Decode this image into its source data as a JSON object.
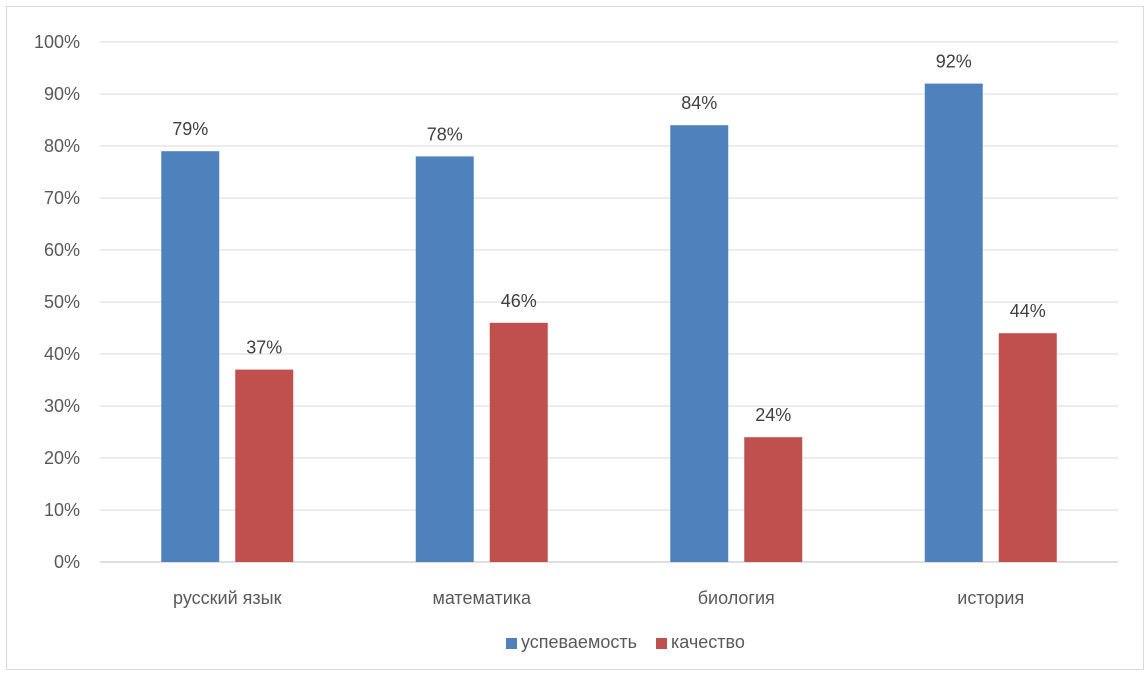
{
  "chart_data": {
    "type": "bar",
    "categories": [
      "русский язык",
      "математика",
      "биология",
      "история"
    ],
    "series": [
      {
        "name": "успеваемость",
        "values": [
          79,
          78,
          84,
          92
        ],
        "color": "#4f81bd"
      },
      {
        "name": "качество",
        "values": [
          37,
          46,
          24,
          44
        ],
        "color": "#c0504d"
      }
    ],
    "ylim": [
      0,
      100
    ],
    "yticks": [
      0,
      10,
      20,
      30,
      40,
      50,
      60,
      70,
      80,
      90,
      100
    ],
    "value_suffix": "%",
    "grid": true,
    "legend_position": "bottom",
    "title": "",
    "xlabel": "",
    "ylabel": ""
  }
}
